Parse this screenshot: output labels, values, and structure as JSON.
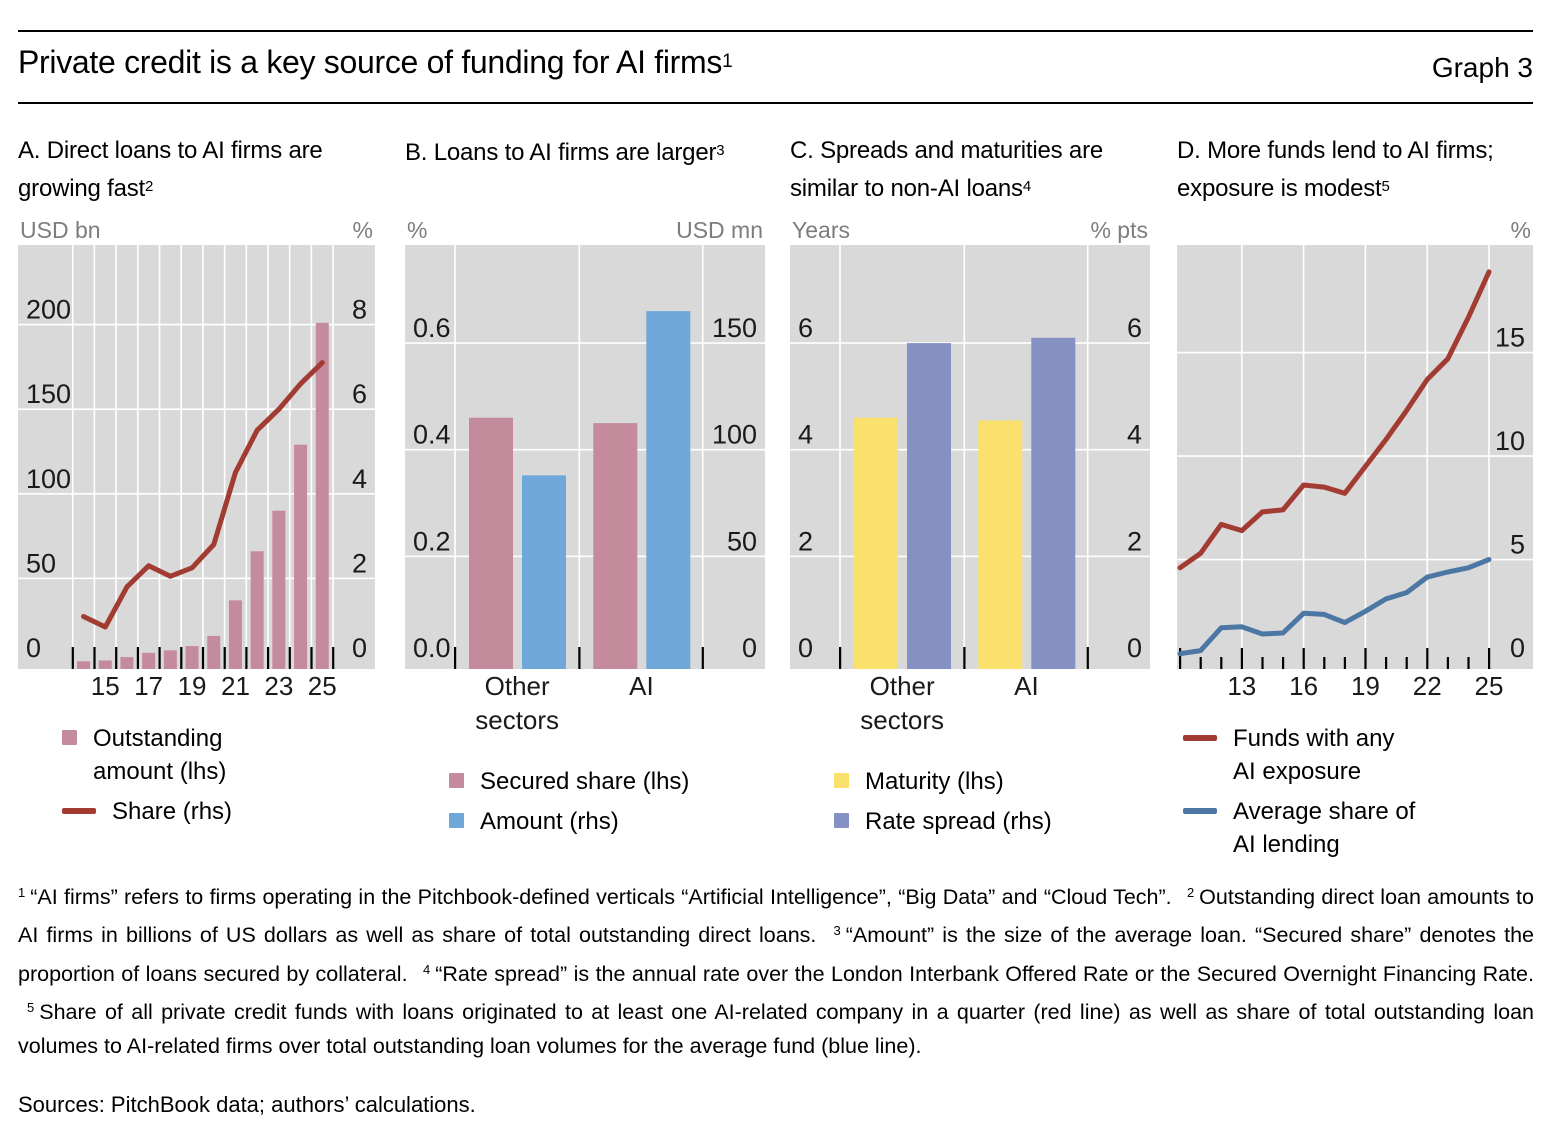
{
  "header": {
    "title": "Private credit is a key source of funding for AI firms",
    "title_sup": "1",
    "graph_label": "Graph 3"
  },
  "chart_data": [
    {
      "id": "A",
      "type": "bar-line",
      "title": "A. Direct loans to AI firms are growing fast",
      "title_sup": "2",
      "left_axis": {
        "unit": "USD bn",
        "ticks": [
          "0",
          "50",
          "100",
          "150",
          "200"
        ],
        "max": 247
      },
      "right_axis": {
        "unit": "%",
        "ticks": [
          "0",
          "2",
          "4",
          "6",
          "8"
        ],
        "max": 9.88
      },
      "x_years": [
        2014,
        2015,
        2016,
        2017,
        2018,
        2019,
        2020,
        2021,
        2022,
        2023,
        2024,
        2025
      ],
      "x_labels": [
        "15",
        "17",
        "19",
        "21",
        "23",
        "25"
      ],
      "bars": {
        "name": "Outstanding amount (lhs)",
        "axis": "left",
        "color": "#c48b9c",
        "values": [
          1,
          1.5,
          3.5,
          6,
          7.5,
          10,
          16,
          37,
          66,
          90,
          129,
          201
        ]
      },
      "line": {
        "name": "Share (rhs)",
        "axis": "right",
        "color": "#a23c33",
        "values": [
          1.1,
          0.85,
          1.8,
          2.3,
          2.05,
          2.25,
          2.8,
          4.5,
          5.5,
          6.0,
          6.6,
          7.1
        ]
      }
    },
    {
      "id": "B",
      "type": "grouped-bar",
      "title": "B. Loans to AI firms are larger",
      "title_sup": "3",
      "left_axis": {
        "unit": "%",
        "ticks": [
          "0.0",
          "0.2",
          "0.4",
          "0.6"
        ],
        "max": 0.784
      },
      "right_axis": {
        "unit": "USD mn",
        "ticks": [
          "0",
          "50",
          "100",
          "150"
        ],
        "max": 196
      },
      "categories": [
        "Other sectors",
        "AI"
      ],
      "series": [
        {
          "name": "Secured share (lhs)",
          "axis": "left",
          "color": "#c48b9c",
          "values": [
            0.46,
            0.45
          ]
        },
        {
          "name": "Amount (rhs)",
          "axis": "right",
          "color": "#6fa8d8",
          "values": [
            88,
            165
          ]
        }
      ]
    },
    {
      "id": "C",
      "type": "grouped-bar",
      "title": "C. Spreads and maturities are similar to non-AI loans",
      "title_sup": "4",
      "left_axis": {
        "unit": "Years",
        "ticks": [
          "0",
          "2",
          "4",
          "6"
        ],
        "max": 7.84
      },
      "right_axis": {
        "unit": "% pts",
        "ticks": [
          "0",
          "2",
          "4",
          "6"
        ],
        "max": 7.84
      },
      "categories": [
        "Other sectors",
        "AI"
      ],
      "series": [
        {
          "name": "Maturity (lhs)",
          "axis": "left",
          "color": "#fae16e",
          "values": [
            4.6,
            4.55
          ]
        },
        {
          "name": "Rate spread (rhs)",
          "axis": "right",
          "color": "#8590c3",
          "values": [
            6.0,
            6.1
          ]
        }
      ]
    },
    {
      "id": "D",
      "type": "line",
      "title": "D. More funds lend to AI firms; exposure is modest",
      "title_sup": "5",
      "right_axis": {
        "unit": "%",
        "ticks": [
          "0",
          "5",
          "10",
          "15"
        ],
        "max": 20.2
      },
      "x_years": [
        2010,
        2011,
        2012,
        2013,
        2014,
        2015,
        2016,
        2017,
        2018,
        2019,
        2020,
        2021,
        2022,
        2023,
        2024,
        2025
      ],
      "x_labels": [
        "13",
        "16",
        "19",
        "22",
        "25"
      ],
      "series": [
        {
          "name": "Funds with any AI exposure",
          "color": "#a23c33",
          "values": [
            4.6,
            5.3,
            6.7,
            6.4,
            7.3,
            7.4,
            8.6,
            8.5,
            8.2,
            9.5,
            10.8,
            12.2,
            13.7,
            14.7,
            16.7,
            18.9
          ]
        },
        {
          "name": "Average share of AI lending",
          "color": "#4c77a5",
          "values": [
            0.45,
            0.6,
            1.7,
            1.75,
            1.4,
            1.45,
            2.4,
            2.35,
            1.95,
            2.5,
            3.1,
            3.4,
            4.15,
            4.4,
            4.6,
            5.0
          ]
        }
      ]
    }
  ],
  "footnotes": [
    {
      "sup": "1",
      "text": "“AI firms” refers to firms operating in the Pitchbook-defined verticals “Artificial Intelligence”, “Big Data” and “Cloud Tech”."
    },
    {
      "sup": "2",
      "text": "Outstanding direct loan amounts to AI firms in billions of US dollars as well as share of total outstanding direct loans."
    },
    {
      "sup": "3",
      "text": "“Amount” is the size of the average loan. “Secured share” denotes the proportion of loans secured by collateral."
    },
    {
      "sup": "4",
      "text": "“Rate spread” is the annual rate over the London Interbank Offered Rate or the Secured Overnight Financing Rate."
    },
    {
      "sup": "5",
      "text": "Share of all private credit funds with loans originated to at least one AI-related company in a quarter (red line) as well as share of total outstanding loan volumes to AI-related firms over total outstanding loan volumes for the average fund (blue line)."
    }
  ],
  "sources": "Sources: PitchBook data; authors’ calculations."
}
